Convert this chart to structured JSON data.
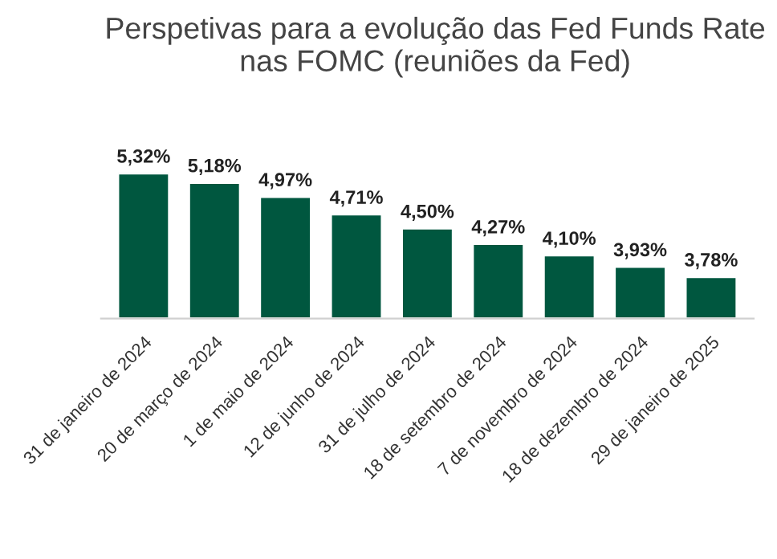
{
  "chart_data": {
    "type": "bar",
    "title": "Perspetivas para a evolução das Fed Funds Rate nas FOMC (reuniões da Fed)",
    "categories": [
      "31 de janeiro de 2024",
      "20 de março de 2024",
      "1 de maio de 2024",
      "12 de junho de 2024",
      "31 de julho de 2024",
      "18 de setembro de 2024",
      "7 de novembro de 2024",
      "18 de dezembro de 2024",
      "29 de janeiro de 2025"
    ],
    "values": [
      5.32,
      5.18,
      4.97,
      4.71,
      4.5,
      4.27,
      4.1,
      3.93,
      3.78
    ],
    "value_labels": [
      "5,32%",
      "5,18%",
      "4,97%",
      "4,71%",
      "4,50%",
      "4,27%",
      "4,10%",
      "3,93%",
      "3,78%"
    ],
    "color": "#00573f",
    "ylim": [
      3.16,
      5.32
    ],
    "grid": false,
    "legend": false
  }
}
